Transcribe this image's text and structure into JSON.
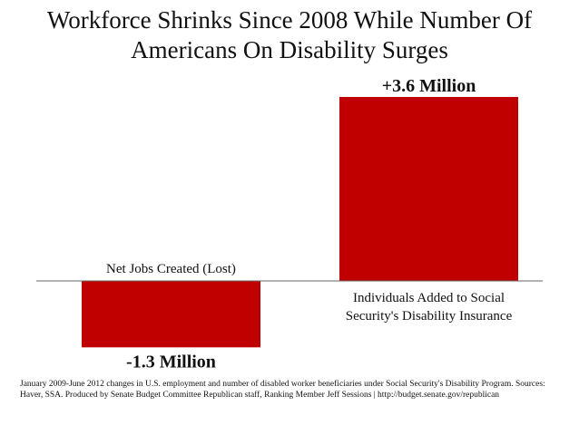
{
  "chart_data": {
    "type": "bar",
    "title": "Workforce Shrinks Since 2008 While Number Of Americans On Disability Surges",
    "categories": [
      "Net Jobs Created (Lost)",
      "Individuals Added to Social Security's Disability Insurance"
    ],
    "values": [
      -1.3,
      3.6
    ],
    "unit": "Million",
    "data_labels": [
      "-1.3 Million",
      "+3.6 Million"
    ],
    "ylim": [
      -1.3,
      3.6
    ],
    "grid": false,
    "legend": "none",
    "colors": {
      "bar": "#c00000",
      "baseline": "#666666",
      "text": "#111111"
    }
  },
  "footnote": "January 2009-June 2012 changes in U.S. employment and number of disabled worker beneficiaries under Social Security's Disability Program. Sources: Haver, SSA. Produced by Senate Budget Committee Republican staff, Ranking Member Jeff Sessions | http://budget.senate.gov/republican"
}
